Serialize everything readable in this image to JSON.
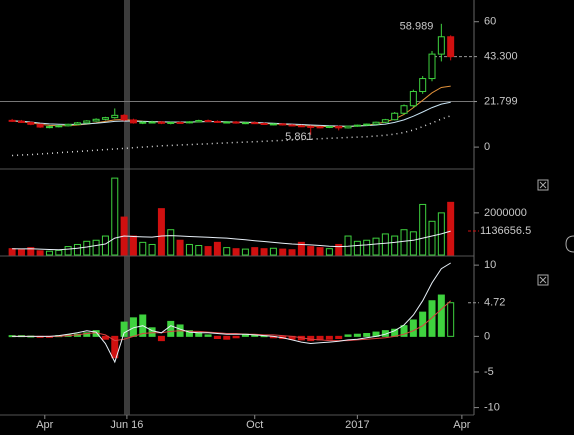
{
  "chart_data": [
    {
      "type": "candlestick",
      "open": [
        12.8,
        12.4,
        11.8,
        10.9,
        9.6,
        9.8,
        10.2,
        10.9,
        11.6,
        12.5,
        13.3,
        14.1,
        15.2,
        13.0,
        11.6,
        11.9,
        12.0,
        11.4,
        11.8,
        11.6,
        12.1,
        12.7,
        12.3,
        11.9,
        12.0,
        11.5,
        11.7,
        11.3,
        10.9,
        11.1,
        10.6,
        10.2,
        9.9,
        9.7,
        9.4,
        9.9,
        9.2,
        10.0,
        10.5,
        11.0,
        11.9,
        13.1,
        16.2,
        19.8,
        26.6,
        32.8,
        44.5,
        52.8
      ],
      "high": [
        13.5,
        13.0,
        12.2,
        11.2,
        10.3,
        10.6,
        11.2,
        12.0,
        12.9,
        13.8,
        14.5,
        18.5,
        15.8,
        13.6,
        12.4,
        12.6,
        12.5,
        12.1,
        12.3,
        12.4,
        13.1,
        13.2,
        12.8,
        12.4,
        12.5,
        12.0,
        12.3,
        11.8,
        11.4,
        11.5,
        11.0,
        10.7,
        10.4,
        10.1,
        10.2,
        10.3,
        10.2,
        10.8,
        11.3,
        12.2,
        13.5,
        16.8,
        20.4,
        27.5,
        34.0,
        46.0,
        58.989,
        53.5
      ],
      "low": [
        12.0,
        11.6,
        10.5,
        9.2,
        9.0,
        9.4,
        9.9,
        10.5,
        11.2,
        12.1,
        12.8,
        13.6,
        12.4,
        11.2,
        11.0,
        11.3,
        11.0,
        10.9,
        11.2,
        11.3,
        11.8,
        12.0,
        11.6,
        11.4,
        11.2,
        11.0,
        11.1,
        10.7,
        10.4,
        10.3,
        9.9,
        9.6,
        5.861,
        9.0,
        9.1,
        8.0,
        8.9,
        9.7,
        10.2,
        10.7,
        11.5,
        12.8,
        15.6,
        19.0,
        25.5,
        31.5,
        41.0,
        41.5
      ],
      "close": [
        12.4,
        11.8,
        10.9,
        9.6,
        9.8,
        10.2,
        10.9,
        11.6,
        12.5,
        13.3,
        14.1,
        15.2,
        13.0,
        11.6,
        11.9,
        12.0,
        11.4,
        11.8,
        11.6,
        12.1,
        12.7,
        12.3,
        11.9,
        12.0,
        11.5,
        11.7,
        11.3,
        10.9,
        11.1,
        10.6,
        10.2,
        9.9,
        9.7,
        9.4,
        9.9,
        9.2,
        10.0,
        10.5,
        11.0,
        11.9,
        13.1,
        16.2,
        19.8,
        26.6,
        32.8,
        44.5,
        52.8,
        43.3
      ],
      "up_color": "#3fd23f",
      "down_color": "#d01010",
      "overlays": [
        {
          "color": "#e0903a",
          "style": "solid",
          "values": [
            12.5,
            12.2,
            11.6,
            10.9,
            10.4,
            10.2,
            10.3,
            10.6,
            11.0,
            11.6,
            12.3,
            13.0,
            13.2,
            12.8,
            12.4,
            12.2,
            12.0,
            11.9,
            11.8,
            11.9,
            12.1,
            12.3,
            12.2,
            12.0,
            11.9,
            11.8,
            11.6,
            11.3,
            11.1,
            10.9,
            10.6,
            10.3,
            10.1,
            9.9,
            9.8,
            9.7,
            9.8,
            10.1,
            10.5,
            11.1,
            12.0,
            13.5,
            15.6,
            18.9,
            22.4,
            26.0,
            28.5,
            29.2
          ]
        },
        {
          "color": "#c8e4f4",
          "style": "solid",
          "values": [
            12.6,
            12.4,
            12.0,
            11.5,
            11.1,
            10.9,
            10.8,
            10.9,
            11.1,
            11.4,
            11.8,
            12.3,
            12.5,
            12.4,
            12.3,
            12.2,
            12.1,
            12.0,
            12.0,
            12.0,
            12.1,
            12.2,
            12.2,
            12.1,
            12.0,
            11.9,
            11.8,
            11.6,
            11.4,
            11.2,
            11.0,
            10.8,
            10.6,
            10.4,
            10.2,
            10.1,
            10.0,
            10.1,
            10.3,
            10.6,
            11.0,
            11.8,
            13.0,
            14.8,
            16.8,
            18.9,
            20.6,
            21.5
          ]
        },
        {
          "color": "#dddddd",
          "style": "dotted",
          "values": [
            -4.0,
            -3.8,
            -3.6,
            -3.3,
            -3.0,
            -2.7,
            -2.4,
            -2.1,
            -1.8,
            -1.5,
            -1.2,
            -0.9,
            -0.6,
            -0.3,
            0.0,
            0.3,
            0.6,
            0.8,
            1.0,
            1.2,
            1.4,
            1.6,
            1.8,
            2.0,
            2.2,
            2.4,
            2.6,
            2.8,
            3.0,
            3.2,
            3.4,
            3.6,
            3.8,
            4.0,
            4.2,
            4.4,
            4.6,
            4.8,
            5.0,
            5.3,
            5.7,
            6.2,
            7.0,
            8.2,
            9.8,
            11.6,
            13.4,
            15.0
          ]
        }
      ],
      "price_lines": [
        {
          "value": 43.3,
          "label": "43.300"
        },
        {
          "value": 21.799,
          "label": "21.799"
        }
      ],
      "ylim": [
        -10,
        68
      ],
      "yticks": [
        0,
        60
      ]
    },
    {
      "type": "volume",
      "values": [
        300000,
        250000,
        350000,
        200000,
        180000,
        220000,
        400000,
        500000,
        650000,
        700000,
        900000,
        3650000,
        1800000,
        900000,
        600000,
        500000,
        2200000,
        1200000,
        700000,
        500000,
        450000,
        400000,
        600000,
        350000,
        300000,
        280000,
        350000,
        300000,
        320000,
        280000,
        250000,
        600000,
        400000,
        350000,
        300000,
        500000,
        900000,
        650000,
        700000,
        800000,
        1000000,
        900000,
        1200000,
        1100000,
        2400000,
        1600000,
        2000000,
        2500000
      ],
      "ma": [
        300000,
        290000,
        300000,
        280000,
        260000,
        250000,
        280000,
        320000,
        380000,
        450000,
        520000,
        800000,
        900000,
        880000,
        860000,
        850000,
        900000,
        920000,
        900000,
        880000,
        860000,
        840000,
        820000,
        800000,
        760000,
        720000,
        680000,
        640000,
        600000,
        560000,
        520000,
        500000,
        480000,
        450000,
        420000,
        400000,
        420000,
        450000,
        480000,
        520000,
        560000,
        600000,
        650000,
        700000,
        800000,
        900000,
        1000000,
        1136656.5
      ],
      "ma_color": "#e8f0f8",
      "ylim": [
        0,
        3940000
      ],
      "yticks": [
        2000000
      ]
    },
    {
      "type": "macd",
      "histogram": [
        0.1,
        0.1,
        0.05,
        -0.1,
        -0.1,
        0.1,
        0.2,
        0.3,
        0.5,
        0.8,
        -0.4,
        -3.0,
        2.0,
        2.6,
        3.0,
        1.2,
        -0.6,
        2.1,
        1.6,
        0.8,
        0.5,
        0.2,
        -0.3,
        -0.4,
        -0.2,
        0.3,
        0.2,
        0.1,
        -0.2,
        -0.3,
        -0.4,
        -0.5,
        -0.6,
        -0.5,
        -0.4,
        -0.3,
        0.2,
        0.3,
        0.4,
        0.6,
        0.8,
        1.0,
        1.5,
        2.3,
        3.4,
        5.0,
        5.8,
        4.72
      ],
      "macd": [
        0,
        0,
        0,
        0,
        0,
        0.1,
        0.3,
        0.5,
        0.8,
        0.6,
        -1.0,
        -3.6,
        0.5,
        1.2,
        1.5,
        0.8,
        0.5,
        1.5,
        1.0,
        0.6,
        0.5,
        0.5,
        0.4,
        0.3,
        0.3,
        0.3,
        0.2,
        0.1,
        0,
        -0.2,
        -0.5,
        -0.8,
        -1.0,
        -0.9,
        -0.8,
        -0.7,
        -0.5,
        -0.4,
        -0.2,
        0,
        0.3,
        0.8,
        1.6,
        3.0,
        5.0,
        7.5,
        9.5,
        10.3
      ],
      "signal": [
        0,
        0,
        0,
        0,
        0,
        0,
        0.1,
        0.2,
        0.4,
        0.5,
        0.2,
        -0.6,
        -0.4,
        0,
        0.4,
        0.5,
        0.5,
        0.7,
        0.8,
        0.7,
        0.7,
        0.6,
        0.5,
        0.4,
        0.4,
        0.3,
        0.3,
        0.2,
        0.2,
        0.1,
        0,
        -0.2,
        -0.4,
        -0.5,
        -0.6,
        -0.6,
        -0.6,
        -0.5,
        -0.4,
        -0.3,
        -0.2,
        0,
        0.3,
        0.8,
        1.5,
        2.6,
        3.8,
        5.0
      ],
      "up_color": "#3fd23f",
      "down_color": "#d01010",
      "macd_color": "#e8f0f8",
      "signal_color": "#d84040",
      "ylim": [
        -10.9,
        11
      ],
      "yticks": [
        -10,
        -5,
        0,
        10
      ],
      "xlim": [
        -1.3,
        49.5
      ],
      "xticks": [
        {
          "value": 3.5,
          "label": "Apr"
        },
        {
          "value": 12.3,
          "label": "Jun 16"
        },
        {
          "value": 26,
          "label": "Oct"
        },
        {
          "value": 37,
          "label": "2017"
        },
        {
          "value": 48.2,
          "label": "Apr"
        }
      ]
    }
  ]
}
